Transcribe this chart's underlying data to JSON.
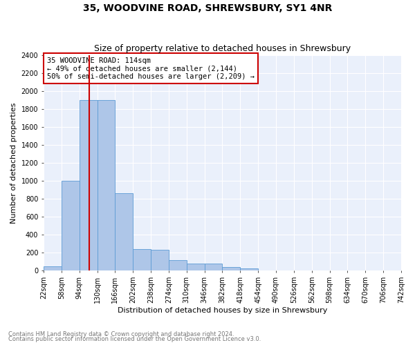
{
  "title": "35, WOODVINE ROAD, SHREWSBURY, SY1 4NR",
  "subtitle": "Size of property relative to detached houses in Shrewsbury",
  "xlabel": "Distribution of detached houses by size in Shrewsbury",
  "ylabel": "Number of detached properties",
  "bin_edges": [
    22,
    58,
    94,
    130,
    166,
    202,
    238,
    274,
    310,
    346,
    382,
    418,
    454,
    490,
    526,
    562,
    598,
    634,
    670,
    706,
    742
  ],
  "bar_heights": [
    50,
    1000,
    1900,
    1900,
    860,
    240,
    230,
    120,
    80,
    80,
    40,
    30,
    5,
    0,
    0,
    0,
    0,
    0,
    0,
    0
  ],
  "bar_color": "#aec6e8",
  "bar_edgecolor": "#5b9bd5",
  "red_line_x": 114,
  "annotation_text": "35 WOODVINE ROAD: 114sqm\n← 49% of detached houses are smaller (2,144)\n50% of semi-detached houses are larger (2,209) →",
  "annotation_box_color": "white",
  "annotation_box_edgecolor": "#cc0000",
  "ylim": [
    0,
    2400
  ],
  "yticks": [
    0,
    200,
    400,
    600,
    800,
    1000,
    1200,
    1400,
    1600,
    1800,
    2000,
    2200,
    2400
  ],
  "xtick_labels": [
    "22sqm",
    "58sqm",
    "94sqm",
    "130sqm",
    "166sqm",
    "202sqm",
    "238sqm",
    "274sqm",
    "310sqm",
    "346sqm",
    "382sqm",
    "418sqm",
    "454sqm",
    "490sqm",
    "526sqm",
    "562sqm",
    "598sqm",
    "634sqm",
    "670sqm",
    "706sqm",
    "742sqm"
  ],
  "footnote1": "Contains HM Land Registry data © Crown copyright and database right 2024.",
  "footnote2": "Contains public sector information licensed under the Open Government Licence v3.0.",
  "plot_bg_color": "#eaf0fb",
  "title_fontsize": 10,
  "subtitle_fontsize": 9,
  "tick_fontsize": 7,
  "label_fontsize": 8,
  "annotation_fontsize": 7.5
}
